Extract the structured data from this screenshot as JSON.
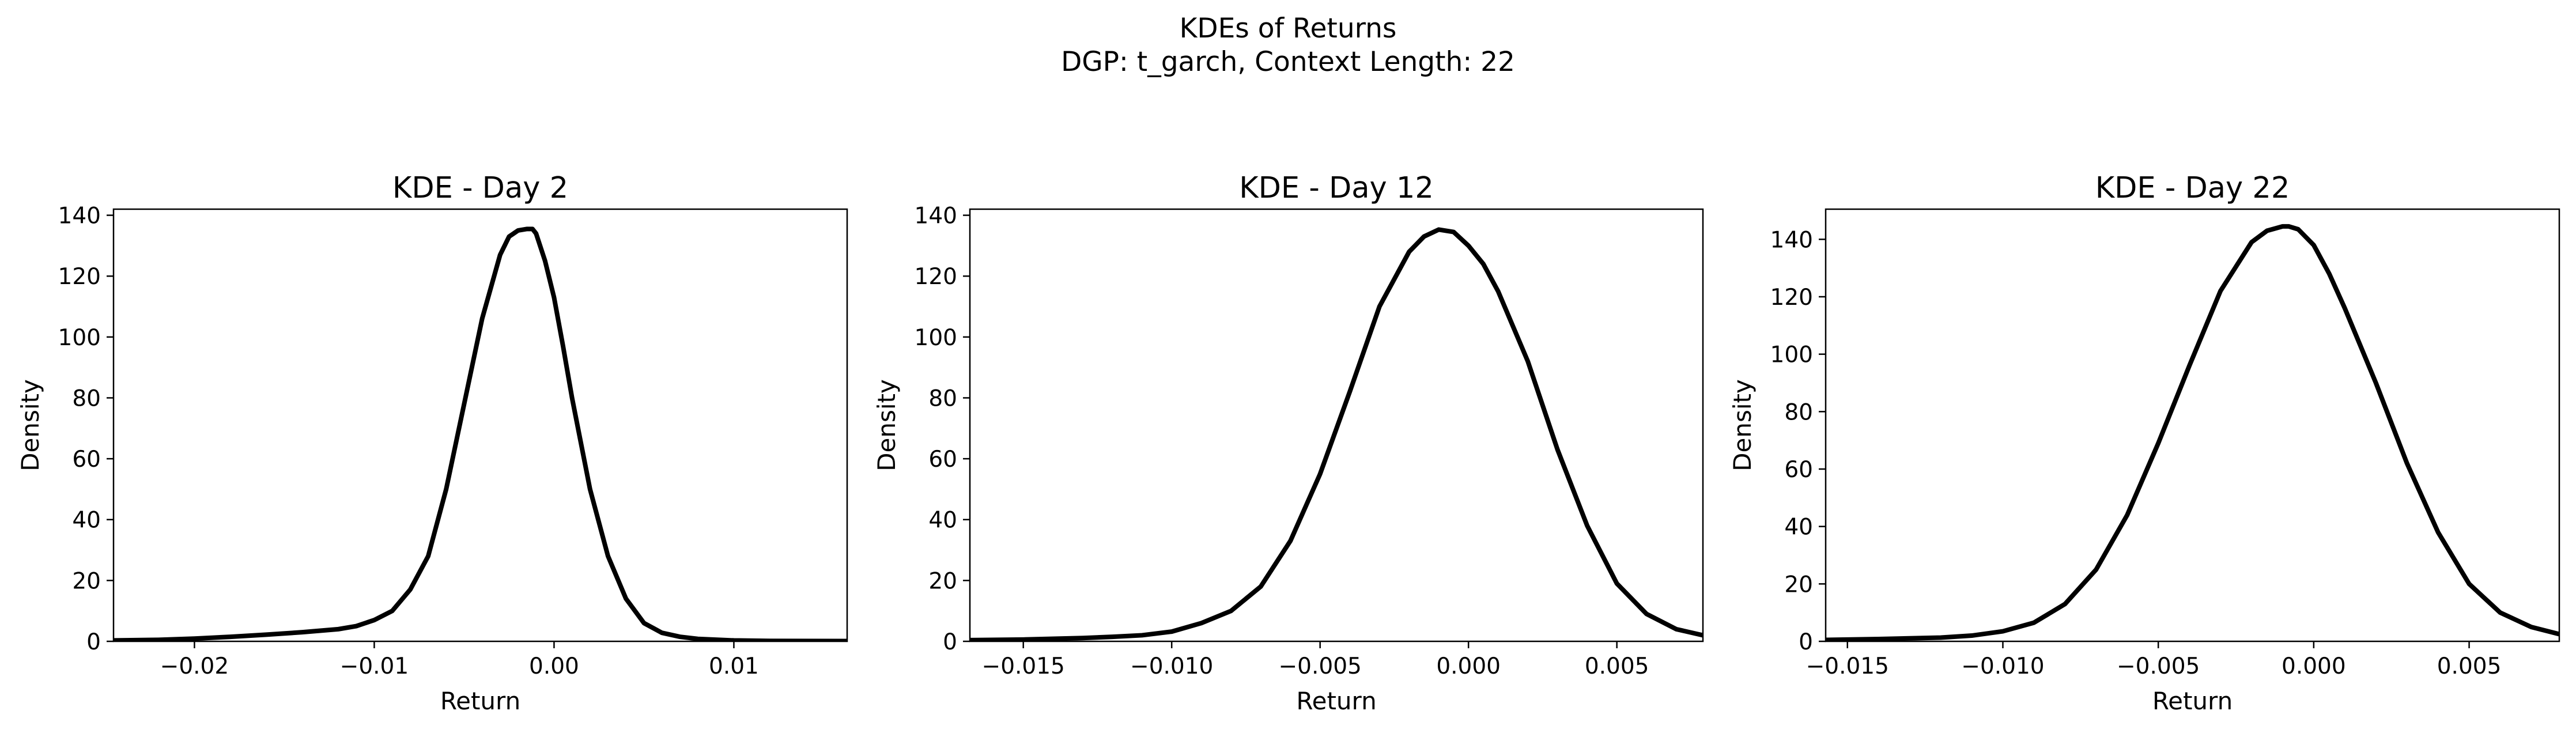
{
  "figure": {
    "title_line1": "KDEs of Returns",
    "title_line2": "DGP: t_garch, Context Length: 22",
    "line_color": "#000000"
  },
  "chart_data": [
    {
      "type": "line",
      "title": "KDE - Day 2",
      "xlabel": "Return",
      "ylabel": "Density",
      "xlim": [
        -0.0245,
        0.0163
      ],
      "ylim": [
        0,
        142
      ],
      "xticks": [
        -0.02,
        -0.01,
        0.0,
        0.01
      ],
      "xtick_labels": [
        "−0.02",
        "−0.01",
        "0.00",
        "0.01"
      ],
      "yticks": [
        0,
        20,
        40,
        60,
        80,
        100,
        120,
        140
      ],
      "ytick_labels": [
        "0",
        "20",
        "40",
        "60",
        "80",
        "100",
        "120",
        "140"
      ],
      "grid": false,
      "series": [
        {
          "x": [
            -0.0245,
            -0.022,
            -0.02,
            -0.018,
            -0.016,
            -0.014,
            -0.012,
            -0.011,
            -0.01,
            -0.009,
            -0.008,
            -0.007,
            -0.006,
            -0.005,
            -0.004,
            -0.003,
            -0.0025,
            -0.002,
            -0.0015,
            -0.0012,
            -0.001,
            -0.0005,
            0.0,
            0.0005,
            0.001,
            0.002,
            0.003,
            0.004,
            0.005,
            0.006,
            0.007,
            0.008,
            0.01,
            0.012,
            0.0163
          ],
          "y": [
            0.3,
            0.5,
            0.9,
            1.5,
            2.2,
            3,
            4,
            5,
            7,
            10,
            17,
            28,
            50,
            78,
            106,
            127,
            133,
            135,
            135.5,
            135.5,
            134,
            125,
            113,
            97,
            80,
            50,
            28,
            14,
            6,
            2.8,
            1.5,
            0.8,
            0.3,
            0.15,
            0.1
          ]
        }
      ]
    },
    {
      "type": "line",
      "title": "KDE - Day 12",
      "xlabel": "Return",
      "ylabel": "Density",
      "xlim": [
        -0.0168,
        0.0079
      ],
      "ylim": [
        0,
        142
      ],
      "xticks": [
        -0.015,
        -0.01,
        -0.005,
        0.0,
        0.005
      ],
      "xtick_labels": [
        "−0.015",
        "−0.010",
        "−0.005",
        "0.000",
        "0.005"
      ],
      "yticks": [
        0,
        20,
        40,
        60,
        80,
        100,
        120,
        140
      ],
      "ytick_labels": [
        "0",
        "20",
        "40",
        "60",
        "80",
        "100",
        "120",
        "140"
      ],
      "grid": false,
      "series": [
        {
          "x": [
            -0.0168,
            -0.015,
            -0.013,
            -0.012,
            -0.011,
            -0.01,
            -0.009,
            -0.008,
            -0.007,
            -0.006,
            -0.005,
            -0.004,
            -0.003,
            -0.002,
            -0.0015,
            -0.001,
            -0.0005,
            0.0,
            0.0005,
            0.001,
            0.002,
            0.003,
            0.004,
            0.005,
            0.006,
            0.007,
            0.0079
          ],
          "y": [
            0.4,
            0.6,
            1.1,
            1.5,
            2,
            3.2,
            6,
            10,
            18,
            33,
            55,
            82,
            110,
            128,
            133,
            135.3,
            134.5,
            130,
            124,
            115,
            92,
            63,
            38,
            19,
            9,
            4,
            2
          ]
        }
      ]
    },
    {
      "type": "line",
      "title": "KDE - Day 22",
      "xlabel": "Return",
      "ylabel": "Density",
      "xlim": [
        -0.0157,
        0.0079
      ],
      "ylim": [
        0,
        150.5
      ],
      "xticks": [
        -0.015,
        -0.01,
        -0.005,
        0.0,
        0.005
      ],
      "xtick_labels": [
        "−0.015",
        "−0.010",
        "−0.005",
        "0.000",
        "0.005"
      ],
      "yticks": [
        0,
        20,
        40,
        60,
        80,
        100,
        120,
        140
      ],
      "ytick_labels": [
        "0",
        "20",
        "40",
        "60",
        "80",
        "100",
        "120",
        "140"
      ],
      "grid": false,
      "series": [
        {
          "x": [
            -0.0157,
            -0.014,
            -0.012,
            -0.011,
            -0.01,
            -0.009,
            -0.008,
            -0.007,
            -0.006,
            -0.005,
            -0.004,
            -0.003,
            -0.002,
            -0.0015,
            -0.001,
            -0.0008,
            -0.0005,
            0.0,
            0.0005,
            0.001,
            0.002,
            0.003,
            0.004,
            0.005,
            0.006,
            0.007,
            0.0079
          ],
          "y": [
            0.5,
            0.8,
            1.3,
            2,
            3.5,
            6.5,
            13,
            25,
            44,
            69,
            96,
            122,
            139,
            143,
            144.5,
            144.5,
            143.5,
            138,
            128,
            116,
            90,
            62,
            38,
            20,
            10,
            5,
            2.5
          ]
        }
      ]
    }
  ]
}
